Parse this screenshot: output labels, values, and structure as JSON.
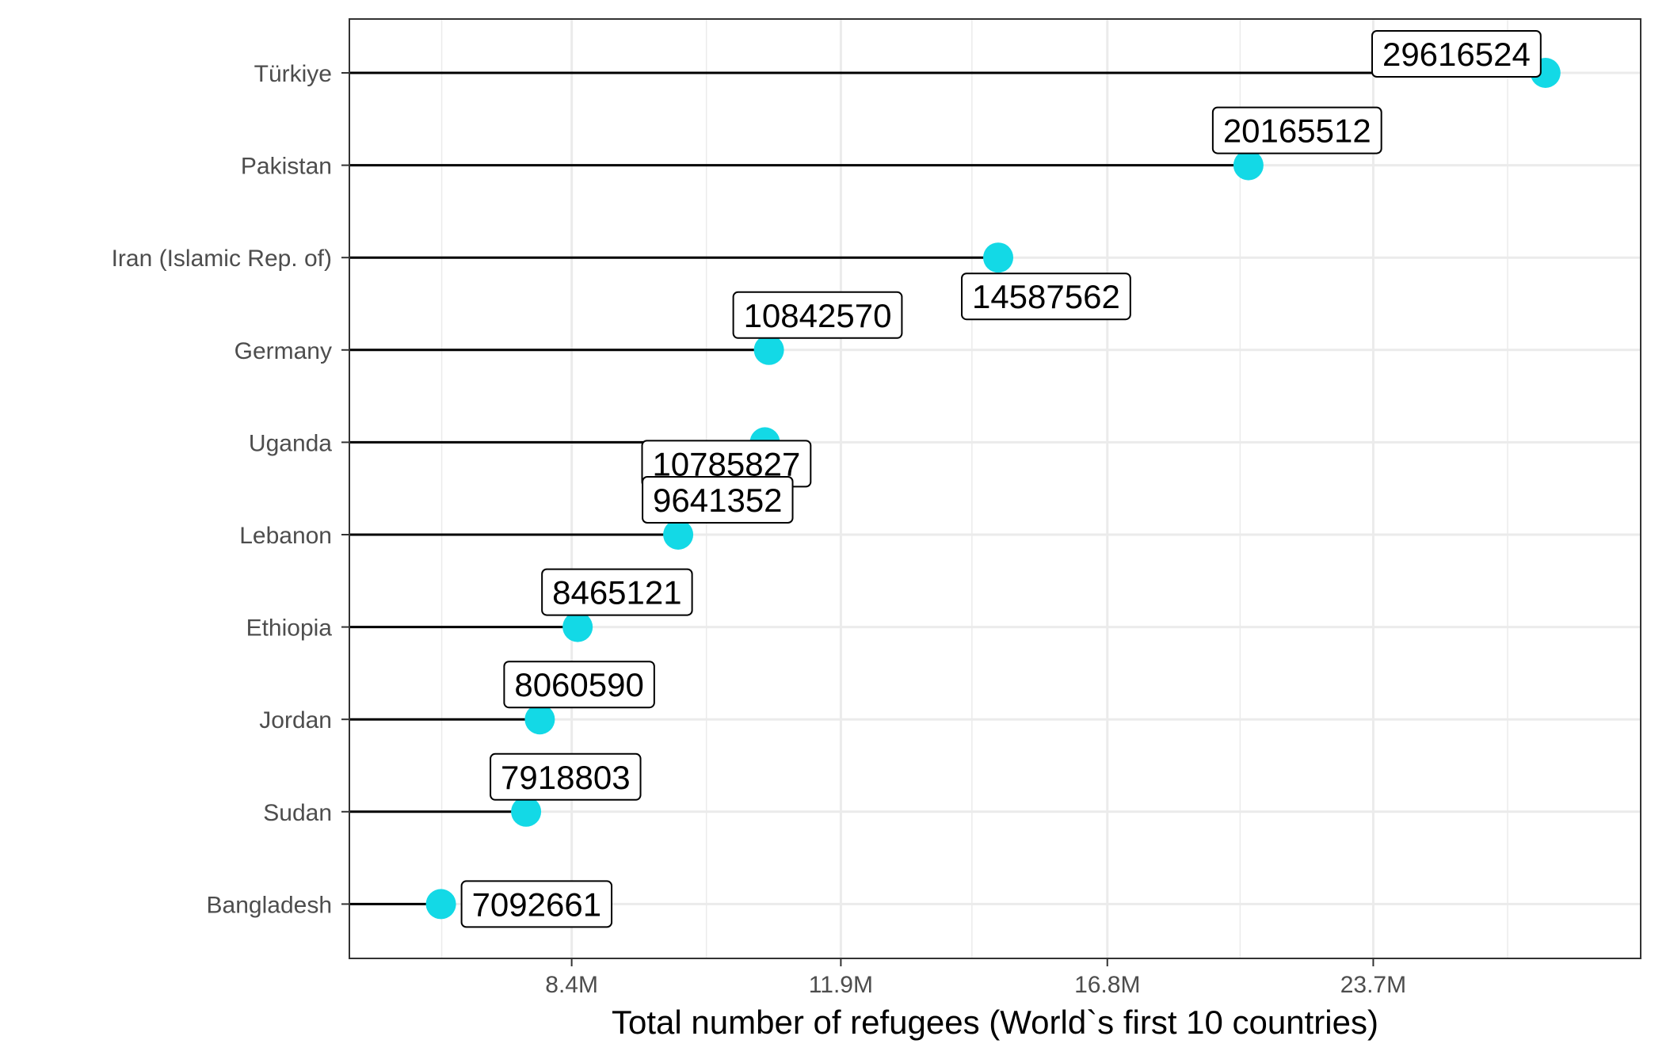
{
  "chart_data": {
    "type": "lollipop",
    "xlabel": "Total number of refugees (World`s first 10 countries)",
    "ylabel": "",
    "x_scale": "log",
    "xlim": [
      6300000,
      33500000
    ],
    "x_ticks": [
      {
        "value": 8400000,
        "label": "8.4M"
      },
      {
        "value": 11900000,
        "label": "11.9M"
      },
      {
        "value": 16800000,
        "label": "16.8M"
      },
      {
        "value": 23700000,
        "label": "23.7M"
      }
    ],
    "x_minor_ticks": [
      7100000,
      10000000,
      14100000,
      19950000,
      28200000
    ],
    "grid": true,
    "colors": {
      "point": "#13D9E6",
      "segment": "#000000",
      "grid": "#EBEBEB",
      "panel_border": "#333333"
    },
    "series": [
      {
        "category": "Türkiye",
        "value": 29616524,
        "label": "29616524",
        "label_pos": "upper-left"
      },
      {
        "category": "Pakistan",
        "value": 20165512,
        "label": "20165512",
        "label_pos": "upper-right"
      },
      {
        "category": "Iran (Islamic Rep. of)",
        "value": 14587562,
        "label": "14587562",
        "label_pos": "lower-right"
      },
      {
        "category": "Germany",
        "value": 10842570,
        "label": "10842570",
        "label_pos": "upper-right"
      },
      {
        "category": "Uganda",
        "value": 10785827,
        "label": "10785827",
        "label_pos": "lower-left"
      },
      {
        "category": "Lebanon",
        "value": 9641352,
        "label": "9641352",
        "label_pos": "upper-right"
      },
      {
        "category": "Ethiopia",
        "value": 8465121,
        "label": "8465121",
        "label_pos": "upper-right"
      },
      {
        "category": "Jordan",
        "value": 8060590,
        "label": "8060590",
        "label_pos": "upper-right"
      },
      {
        "category": "Sudan",
        "value": 7918803,
        "label": "7918803",
        "label_pos": "upper-right"
      },
      {
        "category": "Bangladesh",
        "value": 7092661,
        "label": "7092661",
        "label_pos": "right"
      }
    ]
  }
}
